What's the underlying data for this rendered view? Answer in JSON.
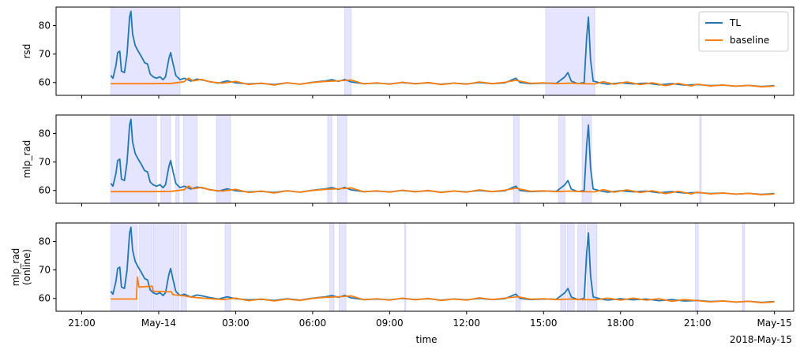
{
  "chart_data": {
    "type": "line",
    "xlabel": "time",
    "x_ticks": [
      {
        "t": "2018-05-13T21:00",
        "label": "21:00"
      },
      {
        "t": "2018-05-14T00:00",
        "label": "May-14"
      },
      {
        "t": "2018-05-14T03:00",
        "label": "03:00"
      },
      {
        "t": "2018-05-14T06:00",
        "label": "06:00"
      },
      {
        "t": "2018-05-14T09:00",
        "label": "09:00"
      },
      {
        "t": "2018-05-14T12:00",
        "label": "12:00"
      },
      {
        "t": "2018-05-14T15:00",
        "label": "15:00"
      },
      {
        "t": "2018-05-14T18:00",
        "label": "18:00"
      },
      {
        "t": "2018-05-14T21:00",
        "label": "21:00"
      },
      {
        "t": "2018-05-15T00:00",
        "label": "May-15"
      }
    ],
    "x_offset_label": "2018-May-15",
    "xlim": [
      "2018-05-13T20:00",
      "2018-05-15T00:45"
    ],
    "ylim": [
      55.5,
      86.5
    ],
    "y_ticks": [
      60,
      70,
      80
    ],
    "legend": {
      "placement": "top-right",
      "entries": [
        "TL",
        "baseline"
      ]
    },
    "colors": {
      "TL": "#1f77b4",
      "baseline": "#ff7f0e",
      "anomaly_span": "#0000ff"
    },
    "tl": {
      "name": "TL",
      "points": [
        [
          "2018-05-13T22:08",
          62.5
        ],
        [
          "2018-05-13T22:13",
          61.5
        ],
        [
          "2018-05-13T22:20",
          66
        ],
        [
          "2018-05-13T22:24",
          70.5
        ],
        [
          "2018-05-13T22:29",
          71
        ],
        [
          "2018-05-13T22:33",
          64
        ],
        [
          "2018-05-13T22:40",
          63.5
        ],
        [
          "2018-05-13T22:46",
          70
        ],
        [
          "2018-05-13T22:52",
          83
        ],
        [
          "2018-05-13T22:55",
          85
        ],
        [
          "2018-05-13T22:59",
          77
        ],
        [
          "2018-05-13T23:05",
          73
        ],
        [
          "2018-05-13T23:12",
          71
        ],
        [
          "2018-05-13T23:20",
          69
        ],
        [
          "2018-05-13T23:27",
          67
        ],
        [
          "2018-05-13T23:34",
          66.5
        ],
        [
          "2018-05-13T23:40",
          63
        ],
        [
          "2018-05-13T23:47",
          62
        ],
        [
          "2018-05-13T23:55",
          61.5
        ],
        [
          "2018-05-14T00:03",
          62
        ],
        [
          "2018-05-14T00:10",
          61
        ],
        [
          "2018-05-14T00:16",
          62
        ],
        [
          "2018-05-14T00:24",
          68.5
        ],
        [
          "2018-05-14T00:28",
          70.5
        ],
        [
          "2018-05-14T00:33",
          67
        ],
        [
          "2018-05-14T00:40",
          62.5
        ],
        [
          "2018-05-14T00:50",
          61
        ],
        [
          "2018-05-14T01:00",
          61.5
        ],
        [
          "2018-05-14T01:15",
          60.5
        ],
        [
          "2018-05-14T01:30",
          61.2
        ],
        [
          "2018-05-14T01:45",
          60.8
        ],
        [
          "2018-05-14T02:00",
          60.3
        ],
        [
          "2018-05-14T02:20",
          59.8
        ],
        [
          "2018-05-14T02:40",
          60.6
        ],
        [
          "2018-05-14T03:00",
          59.9
        ],
        [
          "2018-05-14T03:30",
          59.5
        ],
        [
          "2018-05-14T04:00",
          59.7
        ],
        [
          "2018-05-14T04:30",
          59.3
        ],
        [
          "2018-05-14T05:00",
          59.9
        ],
        [
          "2018-05-14T05:30",
          59.4
        ],
        [
          "2018-05-14T06:00",
          60.1
        ],
        [
          "2018-05-14T06:30",
          60.6
        ],
        [
          "2018-05-14T06:45",
          61
        ],
        [
          "2018-05-14T07:00",
          60.4
        ],
        [
          "2018-05-14T07:15",
          61.1
        ],
        [
          "2018-05-14T07:30",
          60.2
        ],
        [
          "2018-05-14T08:00",
          59.6
        ],
        [
          "2018-05-14T08:30",
          59.8
        ],
        [
          "2018-05-14T09:00",
          59.5
        ],
        [
          "2018-05-14T09:30",
          60
        ],
        [
          "2018-05-14T10:00",
          59.6
        ],
        [
          "2018-05-14T10:30",
          59.9
        ],
        [
          "2018-05-14T11:00",
          59.4
        ],
        [
          "2018-05-14T11:30",
          59.8
        ],
        [
          "2018-05-14T12:00",
          59.5
        ],
        [
          "2018-05-14T12:30",
          60
        ],
        [
          "2018-05-14T13:00",
          59.6
        ],
        [
          "2018-05-14T13:30",
          59.9
        ],
        [
          "2018-05-14T13:55",
          61.5
        ],
        [
          "2018-05-14T14:05",
          60
        ],
        [
          "2018-05-14T14:30",
          59.6
        ],
        [
          "2018-05-14T15:00",
          59.8
        ],
        [
          "2018-05-14T15:30",
          59.7
        ],
        [
          "2018-05-14T15:50",
          62
        ],
        [
          "2018-05-14T15:57",
          63.5
        ],
        [
          "2018-05-14T16:05",
          60.5
        ],
        [
          "2018-05-14T16:20",
          59.6
        ],
        [
          "2018-05-14T16:35",
          60
        ],
        [
          "2018-05-14T16:41",
          76
        ],
        [
          "2018-05-14T16:45",
          83
        ],
        [
          "2018-05-14T16:50",
          68
        ],
        [
          "2018-05-14T16:56",
          60.5
        ],
        [
          "2018-05-14T17:15",
          59.8
        ],
        [
          "2018-05-14T17:30",
          59.4
        ],
        [
          "2018-05-14T18:00",
          59.9
        ],
        [
          "2018-05-14T18:30",
          59.5
        ],
        [
          "2018-05-14T19:00",
          59.8
        ],
        [
          "2018-05-14T19:30",
          59.2
        ],
        [
          "2018-05-14T20:00",
          59.6
        ],
        [
          "2018-05-14T20:30",
          59.1
        ],
        [
          "2018-05-14T21:00",
          59.3
        ],
        [
          "2018-05-14T21:30",
          58.9
        ],
        [
          "2018-05-14T22:00",
          59.1
        ],
        [
          "2018-05-14T22:30",
          58.7
        ],
        [
          "2018-05-14T23:00",
          59
        ],
        [
          "2018-05-14T23:30",
          58.6
        ],
        [
          "2018-05-15T00:00",
          58.9
        ]
      ]
    },
    "baseline": {
      "name": "baseline",
      "points": [
        [
          "2018-05-13T22:08",
          59.6
        ],
        [
          "2018-05-13T23:00",
          59.6
        ],
        [
          "2018-05-13T23:45",
          59.6
        ],
        [
          "2018-05-14T00:30",
          59.7
        ],
        [
          "2018-05-14T01:00",
          60.3
        ],
        [
          "2018-05-14T01:10",
          61.6
        ],
        [
          "2018-05-14T01:20",
          60.6
        ],
        [
          "2018-05-14T01:40",
          61.1
        ],
        [
          "2018-05-14T02:00",
          60.2
        ],
        [
          "2018-05-14T02:30",
          59.8
        ],
        [
          "2018-05-14T03:00",
          60.4
        ],
        [
          "2018-05-14T03:30",
          59.3
        ],
        [
          "2018-05-14T04:00",
          59.8
        ],
        [
          "2018-05-14T04:30",
          59.1
        ],
        [
          "2018-05-14T05:00",
          59.9
        ],
        [
          "2018-05-14T05:30",
          59.4
        ],
        [
          "2018-05-14T06:00",
          60
        ],
        [
          "2018-05-14T06:30",
          60.4
        ],
        [
          "2018-05-14T07:00",
          60.6
        ],
        [
          "2018-05-14T07:30",
          60.9
        ],
        [
          "2018-05-14T08:00",
          59.5
        ],
        [
          "2018-05-14T08:30",
          59.9
        ],
        [
          "2018-05-14T09:00",
          59.4
        ],
        [
          "2018-05-14T09:30",
          60.1
        ],
        [
          "2018-05-14T10:00",
          59.5
        ],
        [
          "2018-05-14T10:30",
          60
        ],
        [
          "2018-05-14T11:00",
          59.3
        ],
        [
          "2018-05-14T11:30",
          59.8
        ],
        [
          "2018-05-14T12:00",
          59.4
        ],
        [
          "2018-05-14T12:30",
          60.2
        ],
        [
          "2018-05-14T13:00",
          59.6
        ],
        [
          "2018-05-14T13:30",
          60.1
        ],
        [
          "2018-05-14T13:55",
          60.8
        ],
        [
          "2018-05-14T14:30",
          59.7
        ],
        [
          "2018-05-14T15:00",
          59.9
        ],
        [
          "2018-05-14T15:30",
          59.6
        ],
        [
          "2018-05-14T16:00",
          59.8
        ],
        [
          "2018-05-14T16:30",
          59.6
        ],
        [
          "2018-05-14T17:00",
          59.5
        ],
        [
          "2018-05-14T17:20",
          60.3
        ],
        [
          "2018-05-14T17:45",
          59.4
        ],
        [
          "2018-05-14T18:15",
          60.2
        ],
        [
          "2018-05-14T18:45",
          59.3
        ],
        [
          "2018-05-14T19:15",
          59.9
        ],
        [
          "2018-05-14T19:45",
          58.9
        ],
        [
          "2018-05-14T20:15",
          59.7
        ],
        [
          "2018-05-14T20:45",
          58.8
        ],
        [
          "2018-05-14T21:00",
          59.4
        ],
        [
          "2018-05-14T21:30",
          58.8
        ],
        [
          "2018-05-14T22:00",
          59.1
        ],
        [
          "2018-05-14T22:30",
          58.7
        ],
        [
          "2018-05-14T23:00",
          59
        ],
        [
          "2018-05-14T23:30",
          58.5
        ],
        [
          "2018-05-15T00:00",
          58.8
        ]
      ]
    },
    "panels": [
      {
        "ylabel": [
          "rsd"
        ],
        "show_legend": true,
        "spans": [
          [
            "2018-05-13T22:08",
            "2018-05-14T00:50"
          ],
          [
            "2018-05-14T07:15",
            "2018-05-14T07:30"
          ],
          [
            "2018-05-14T15:05",
            "2018-05-14T17:00"
          ]
        ]
      },
      {
        "ylabel": [
          "mlp_rad"
        ],
        "show_legend": false,
        "spans": [
          [
            "2018-05-13T22:08",
            "2018-05-13T23:55"
          ],
          [
            "2018-05-14T00:05",
            "2018-05-14T00:28"
          ],
          [
            "2018-05-14T00:40",
            "2018-05-14T00:48"
          ],
          [
            "2018-05-14T00:58",
            "2018-05-14T01:30"
          ],
          [
            "2018-05-14T02:15",
            "2018-05-14T02:48"
          ],
          [
            "2018-05-14T06:35",
            "2018-05-14T06:45"
          ],
          [
            "2018-05-14T06:58",
            "2018-05-14T07:20"
          ],
          [
            "2018-05-14T13:50",
            "2018-05-14T14:03"
          ],
          [
            "2018-05-14T15:35",
            "2018-05-14T15:50"
          ],
          [
            "2018-05-14T16:30",
            "2018-05-14T16:52"
          ],
          [
            "2018-05-14T21:05",
            "2018-05-14T21:09"
          ]
        ]
      },
      {
        "ylabel": [
          "mlp_rad",
          "(online)"
        ],
        "show_legend": false,
        "spans": [
          [
            "2018-05-13T22:08",
            "2018-05-13T23:10"
          ],
          [
            "2018-05-13T23:14",
            "2018-05-13T23:45"
          ],
          [
            "2018-05-13T23:48",
            "2018-05-14T00:35"
          ],
          [
            "2018-05-14T00:38",
            "2018-05-14T00:48"
          ],
          [
            "2018-05-14T00:52",
            "2018-05-14T01:05"
          ],
          [
            "2018-05-14T02:35",
            "2018-05-14T02:48"
          ],
          [
            "2018-05-14T06:40",
            "2018-05-14T06:50"
          ],
          [
            "2018-05-14T07:02",
            "2018-05-14T07:18"
          ],
          [
            "2018-05-14T09:35",
            "2018-05-14T09:38"
          ],
          [
            "2018-05-14T13:55",
            "2018-05-14T14:06"
          ],
          [
            "2018-05-14T15:40",
            "2018-05-14T15:52"
          ],
          [
            "2018-05-14T15:56",
            "2018-05-14T16:12"
          ],
          [
            "2018-05-14T16:20",
            "2018-05-14T16:38"
          ],
          [
            "2018-05-14T16:42",
            "2018-05-14T17:05"
          ],
          [
            "2018-05-14T20:55",
            "2018-05-14T21:02"
          ],
          [
            "2018-05-14T22:45",
            "2018-05-14T22:50"
          ]
        ],
        "baseline_points": [
          [
            "2018-05-13T22:08",
            59.8
          ],
          [
            "2018-05-13T23:08",
            59.8
          ],
          [
            "2018-05-13T23:10",
            67.5
          ],
          [
            "2018-05-13T23:14",
            64
          ],
          [
            "2018-05-13T23:45",
            64.3
          ],
          [
            "2018-05-13T23:47",
            62.5
          ],
          [
            "2018-05-14T00:30",
            62.3
          ],
          [
            "2018-05-14T00:33",
            61.3
          ],
          [
            "2018-05-14T01:00",
            60.9
          ],
          [
            "2018-05-14T01:20",
            60.4
          ],
          [
            "2018-05-14T02:00",
            59.9
          ],
          [
            "2018-05-14T02:30",
            59.6
          ],
          [
            "2018-05-14T03:00",
            60.1
          ],
          [
            "2018-05-14T03:30",
            59.2
          ],
          [
            "2018-05-14T04:00",
            59.8
          ],
          [
            "2018-05-14T04:30",
            59.1
          ],
          [
            "2018-05-14T05:00",
            59.8
          ],
          [
            "2018-05-14T05:30",
            59.3
          ],
          [
            "2018-05-14T06:00",
            60
          ],
          [
            "2018-05-14T06:30",
            60.4
          ],
          [
            "2018-05-14T07:00",
            60.6
          ],
          [
            "2018-05-14T07:30",
            60.9
          ],
          [
            "2018-05-14T08:00",
            59.5
          ],
          [
            "2018-05-14T08:30",
            59.9
          ],
          [
            "2018-05-14T09:00",
            59.4
          ],
          [
            "2018-05-14T09:30",
            60.1
          ],
          [
            "2018-05-14T10:00",
            59.5
          ],
          [
            "2018-05-14T10:30",
            60
          ],
          [
            "2018-05-14T11:00",
            59.3
          ],
          [
            "2018-05-14T11:30",
            59.8
          ],
          [
            "2018-05-14T12:00",
            59.4
          ],
          [
            "2018-05-14T12:30",
            60.2
          ],
          [
            "2018-05-14T13:00",
            59.6
          ],
          [
            "2018-05-14T13:30",
            60.1
          ],
          [
            "2018-05-14T14:00",
            60.6
          ],
          [
            "2018-05-14T14:30",
            59.7
          ],
          [
            "2018-05-14T15:00",
            59.9
          ],
          [
            "2018-05-14T15:30",
            59.6
          ],
          [
            "2018-05-14T16:00",
            59.8
          ],
          [
            "2018-05-14T16:30",
            59.6
          ],
          [
            "2018-05-14T17:00",
            59.5
          ],
          [
            "2018-05-14T17:30",
            60.1
          ],
          [
            "2018-05-14T18:00",
            59.4
          ],
          [
            "2018-05-14T18:30",
            60.1
          ],
          [
            "2018-05-14T19:00",
            59.4
          ],
          [
            "2018-05-14T19:30",
            59.9
          ],
          [
            "2018-05-14T20:00",
            59
          ],
          [
            "2018-05-14T20:30",
            59.6
          ],
          [
            "2018-05-14T21:00",
            59.2
          ],
          [
            "2018-05-14T21:30",
            58.8
          ],
          [
            "2018-05-14T22:00",
            59.1
          ],
          [
            "2018-05-14T22:30",
            58.7
          ],
          [
            "2018-05-14T23:00",
            59
          ],
          [
            "2018-05-14T23:30",
            58.5
          ],
          [
            "2018-05-15T00:00",
            58.8
          ]
        ]
      }
    ]
  }
}
